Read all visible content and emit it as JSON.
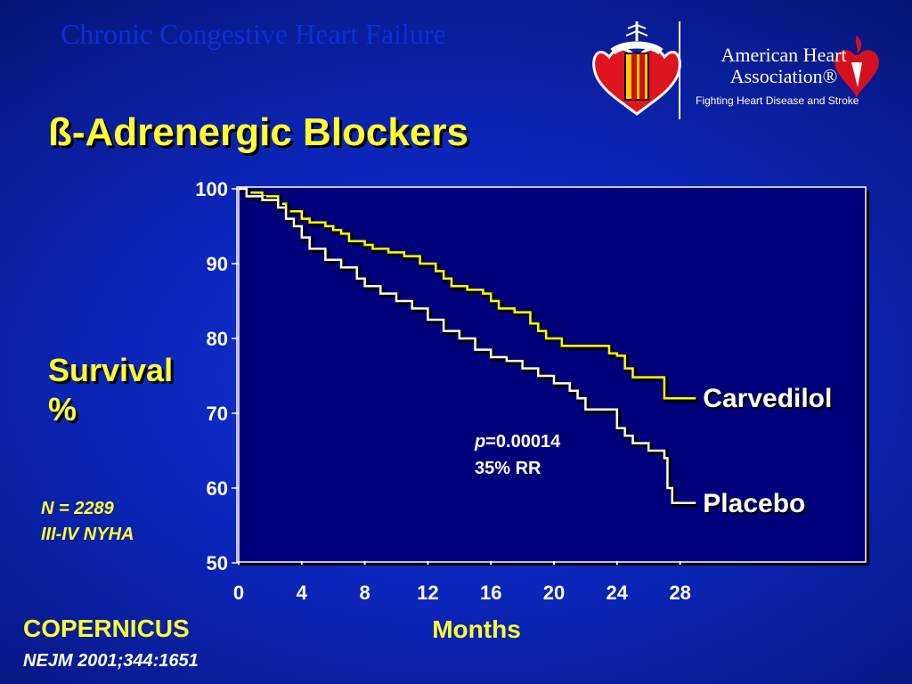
{
  "header": {
    "text": "Chronic Congestive Heart Failure"
  },
  "title": "ß-Adrenergic Blockers",
  "logos": {
    "left": "sociedad-emblem-icon",
    "aha_name": "American Heart Association®",
    "aha_tagline": "Fighting Heart Disease and Stroke",
    "aha_icon": "heart-torch-icon"
  },
  "notes": {
    "n": "N = 2289",
    "nyha": "III-IV NYHA"
  },
  "study": {
    "name": "COPERNICUS",
    "citation": "NEJM 2001;344:1651"
  },
  "colors": {
    "carvedilol": "#ffff00",
    "placebo": "#ffffff",
    "plot_bg": "#00007a",
    "accent": "#ffff33"
  },
  "chart_data": {
    "type": "line",
    "ylabel": "Survival\n%",
    "xlabel": "Months",
    "xlim": [
      0,
      28
    ],
    "ylim": [
      50,
      100
    ],
    "x_ticks": [
      0,
      4,
      8,
      12,
      16,
      20,
      24,
      28
    ],
    "y_ticks": [
      100,
      90,
      80,
      70,
      60,
      50
    ],
    "annotation": {
      "p_label": "p",
      "p_value": "=0.00014",
      "rr": "35% RR"
    },
    "series": [
      {
        "name": "Carvedilol",
        "step": true,
        "points": [
          [
            0,
            100
          ],
          [
            0.5,
            99.5
          ],
          [
            1.5,
            99
          ],
          [
            2.5,
            98
          ],
          [
            3,
            97
          ],
          [
            4,
            96
          ],
          [
            4.5,
            95.5
          ],
          [
            5.5,
            95
          ],
          [
            6,
            94.5
          ],
          [
            6.5,
            94
          ],
          [
            7,
            93
          ],
          [
            8,
            92.5
          ],
          [
            8.5,
            92
          ],
          [
            9.5,
            91.5
          ],
          [
            10.5,
            91
          ],
          [
            11.5,
            90
          ],
          [
            12.5,
            89
          ],
          [
            13,
            88
          ],
          [
            13.5,
            87
          ],
          [
            14.5,
            86.5
          ],
          [
            15.5,
            86
          ],
          [
            16,
            85
          ],
          [
            16.5,
            84
          ],
          [
            17.5,
            83.5
          ],
          [
            18.5,
            82
          ],
          [
            19,
            81
          ],
          [
            19.5,
            80
          ],
          [
            20.5,
            79
          ],
          [
            21.5,
            79
          ],
          [
            23,
            79
          ],
          [
            23.5,
            78
          ],
          [
            24,
            77.7
          ],
          [
            24.5,
            76
          ],
          [
            25,
            74.8
          ],
          [
            26.5,
            74.8
          ],
          [
            27,
            72
          ],
          [
            29,
            72
          ]
        ]
      },
      {
        "name": "Placebo",
        "step": true,
        "points": [
          [
            0,
            100
          ],
          [
            0.5,
            99
          ],
          [
            1.5,
            98.5
          ],
          [
            2.5,
            97.5
          ],
          [
            3,
            96
          ],
          [
            3.5,
            95
          ],
          [
            4,
            93.5
          ],
          [
            4.5,
            92
          ],
          [
            5.5,
            90.5
          ],
          [
            6.5,
            89.5
          ],
          [
            7.5,
            88
          ],
          [
            8,
            87
          ],
          [
            9,
            86
          ],
          [
            10,
            85
          ],
          [
            11,
            84
          ],
          [
            12,
            82.5
          ],
          [
            13,
            81
          ],
          [
            14,
            80
          ],
          [
            15,
            78.5
          ],
          [
            16,
            77.5
          ],
          [
            17,
            77
          ],
          [
            18,
            76
          ],
          [
            19,
            75
          ],
          [
            20,
            74
          ],
          [
            21,
            73
          ],
          [
            21.5,
            72
          ],
          [
            22,
            70.5
          ],
          [
            23,
            70.5
          ],
          [
            24,
            68
          ],
          [
            24.5,
            67
          ],
          [
            25,
            66
          ],
          [
            26,
            65
          ],
          [
            27,
            64
          ],
          [
            27.2,
            60
          ],
          [
            27.5,
            58
          ],
          [
            29,
            58
          ]
        ]
      }
    ]
  }
}
